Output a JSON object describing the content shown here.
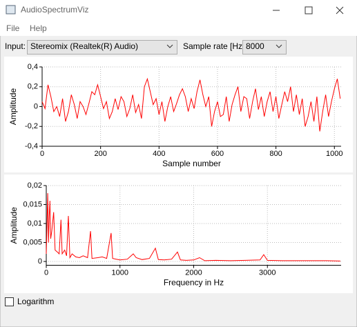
{
  "window": {
    "title": "AudioSpectrumViz",
    "menu": [
      "File",
      "Help"
    ]
  },
  "controls": {
    "input_label": "Input:",
    "input_value": "Stereomix (Realtek(R) Audio)",
    "rate_label": "Sample rate [Hz]:",
    "rate_value": "8000",
    "checkbox_label": "Logarithm"
  },
  "chart_data": [
    {
      "type": "line",
      "ylabel": "Amplitude",
      "xlabel": "Sample number",
      "color": "#ff0000",
      "grid": true,
      "xlim": [
        0,
        1023
      ],
      "xticks": [
        0,
        200,
        400,
        600,
        800,
        1000
      ],
      "ylim": [
        -0.4,
        0.4
      ],
      "yticks": [
        {
          "value": -0.4,
          "label": "-0,4"
        },
        {
          "value": -0.2,
          "label": "-0,2"
        },
        0,
        {
          "value": 0.2,
          "label": "0,2"
        },
        {
          "value": 0.4,
          "label": "0,4"
        }
      ],
      "x": [
        0,
        10,
        20,
        30,
        40,
        50,
        60,
        70,
        80,
        90,
        100,
        110,
        120,
        130,
        140,
        150,
        160,
        170,
        180,
        190,
        200,
        210,
        220,
        230,
        240,
        250,
        260,
        270,
        280,
        290,
        300,
        310,
        320,
        330,
        340,
        350,
        360,
        370,
        380,
        390,
        400,
        410,
        420,
        430,
        440,
        450,
        460,
        470,
        480,
        490,
        500,
        510,
        520,
        530,
        540,
        550,
        560,
        570,
        580,
        590,
        600,
        610,
        620,
        630,
        640,
        650,
        660,
        670,
        680,
        690,
        700,
        710,
        720,
        730,
        740,
        750,
        760,
        770,
        780,
        790,
        800,
        810,
        820,
        830,
        840,
        850,
        860,
        870,
        880,
        890,
        900,
        910,
        920,
        930,
        940,
        950,
        960,
        970,
        980,
        990,
        1000,
        1010,
        1020
      ],
      "values": [
        0.05,
        -0.02,
        0.22,
        0.1,
        -0.05,
        0.0,
        -0.1,
        0.08,
        -0.15,
        -0.05,
        0.12,
        0.02,
        -0.12,
        0.05,
        0.0,
        -0.08,
        0.03,
        0.15,
        0.12,
        0.22,
        0.1,
        -0.02,
        0.05,
        -0.12,
        -0.05,
        0.08,
        -0.03,
        0.1,
        0.05,
        -0.1,
        -0.02,
        0.12,
        -0.06,
        0.02,
        -0.12,
        0.2,
        0.28,
        0.15,
        0.02,
        0.08,
        -0.08,
        0.05,
        -0.15,
        0.0,
        0.1,
        -0.05,
        0.03,
        0.12,
        0.18,
        0.1,
        -0.05,
        0.08,
        -0.02,
        0.15,
        0.27,
        0.12,
        0.0,
        0.1,
        -0.2,
        -0.05,
        0.05,
        -0.1,
        -0.08,
        0.1,
        -0.15,
        0.02,
        0.12,
        0.2,
        -0.05,
        0.1,
        0.08,
        -0.12,
        0.05,
        0.18,
        -0.03,
        0.1,
        -0.1,
        0.05,
        0.15,
        -0.05,
        0.1,
        -0.12,
        0.02,
        0.15,
        0.05,
        0.2,
        -0.05,
        0.12,
        -0.08,
        0.08,
        -0.2,
        -0.1,
        0.05,
        -0.15,
        0.1,
        -0.25,
        -0.05,
        0.12,
        -0.1,
        0.05,
        0.18,
        0.28,
        0.08
      ]
    },
    {
      "type": "line",
      "ylabel": "Amplitude",
      "xlabel": "Frequency in Hz",
      "color": "#ff0000",
      "grid": true,
      "xlim": [
        0,
        4000
      ],
      "xticks": [
        0,
        1000,
        2000,
        3000
      ],
      "ylim": [
        -0.001,
        0.02
      ],
      "yticks": [
        0,
        {
          "value": 0.005,
          "label": "0,005"
        },
        {
          "value": 0.01,
          "label": "0,01"
        },
        {
          "value": 0.015,
          "label": "0,015"
        },
        {
          "value": 0.02,
          "label": "0,02"
        }
      ],
      "x": [
        0,
        10,
        20,
        30,
        40,
        50,
        60,
        75,
        100,
        120,
        150,
        175,
        200,
        215,
        250,
        275,
        300,
        320,
        350,
        400,
        450,
        500,
        560,
        600,
        620,
        700,
        760,
        820,
        880,
        900,
        950,
        1000,
        1100,
        1180,
        1220,
        1300,
        1400,
        1480,
        1520,
        1600,
        1700,
        1780,
        1820,
        1900,
        2000,
        2080,
        2150,
        2300,
        2500,
        2700,
        2900,
        2950,
        3000,
        3200,
        3400,
        3600,
        3800,
        3990
      ],
      "values": [
        0.002,
        0.01,
        0.018,
        0.005,
        0.012,
        0.016,
        0.006,
        0.008,
        0.013,
        0.003,
        0.0025,
        0.002,
        0.011,
        0.002,
        0.003,
        0.0015,
        0.012,
        0.001,
        0.002,
        0.0012,
        0.001,
        0.0015,
        0.001,
        0.008,
        0.0008,
        0.001,
        0.0012,
        0.0008,
        0.0075,
        0.0008,
        0.0006,
        0.0004,
        0.0006,
        0.002,
        0.001,
        0.0005,
        0.0008,
        0.0035,
        0.0005,
        0.0004,
        0.0006,
        0.0025,
        0.0004,
        0.0003,
        0.0004,
        0.001,
        0.0002,
        0.0003,
        0.0002,
        0.0003,
        0.0004,
        0.0018,
        0.0003,
        0.0002,
        0.0002,
        0.0002,
        0.0002,
        0.0001
      ]
    }
  ]
}
